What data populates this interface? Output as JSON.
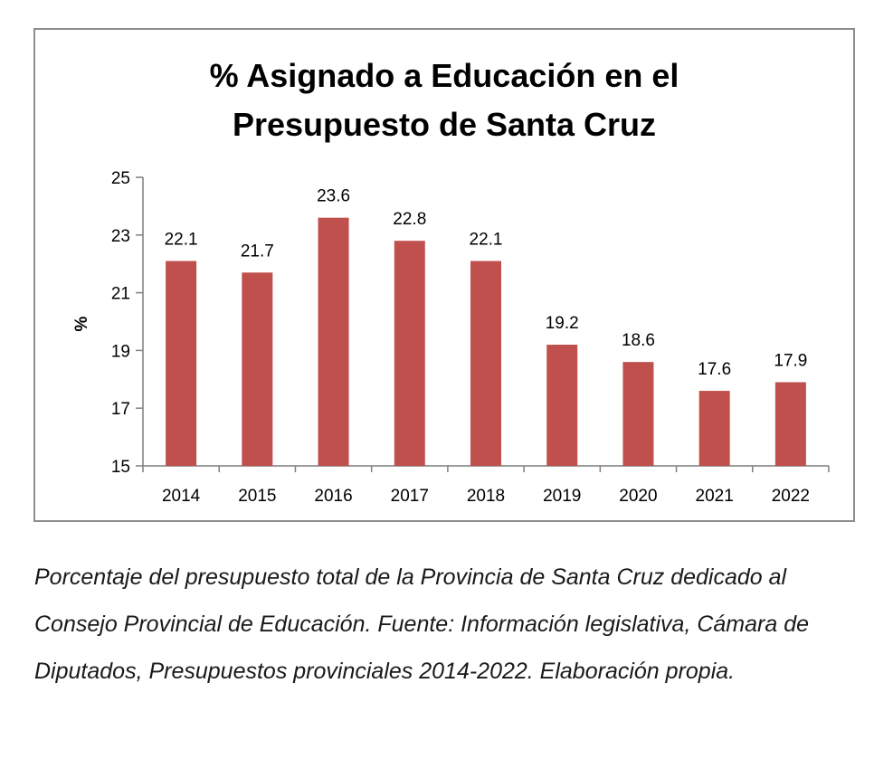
{
  "chart_data": {
    "type": "bar",
    "title_lines": [
      "% Asignado a Educación en el",
      "Presupuesto de Santa Cruz"
    ],
    "ylabel": "%",
    "xlabel": "",
    "categories": [
      "2014",
      "2015",
      "2016",
      "2017",
      "2018",
      "2019",
      "2020",
      "2021",
      "2022"
    ],
    "values": [
      22.1,
      21.7,
      23.6,
      22.8,
      22.1,
      19.2,
      18.6,
      17.6,
      17.9
    ],
    "data_labels": [
      "22.1",
      "21.7",
      "23.6",
      "22.8",
      "22.1",
      "19.2",
      "18.6",
      "17.6",
      "17.9"
    ],
    "ylim": [
      15,
      25
    ],
    "yticks": [
      15,
      17,
      19,
      21,
      23,
      25
    ],
    "grid": false,
    "legend": "none",
    "bar_color": "#c0504d"
  },
  "caption": "Porcentaje del presupuesto total de la Provincia de Santa Cruz dedicado al Consejo Provincial de Educación. Fuente: Información legislativa, Cámara de Diputados, Presupuestos provinciales 2014-2022. Elaboración propia."
}
